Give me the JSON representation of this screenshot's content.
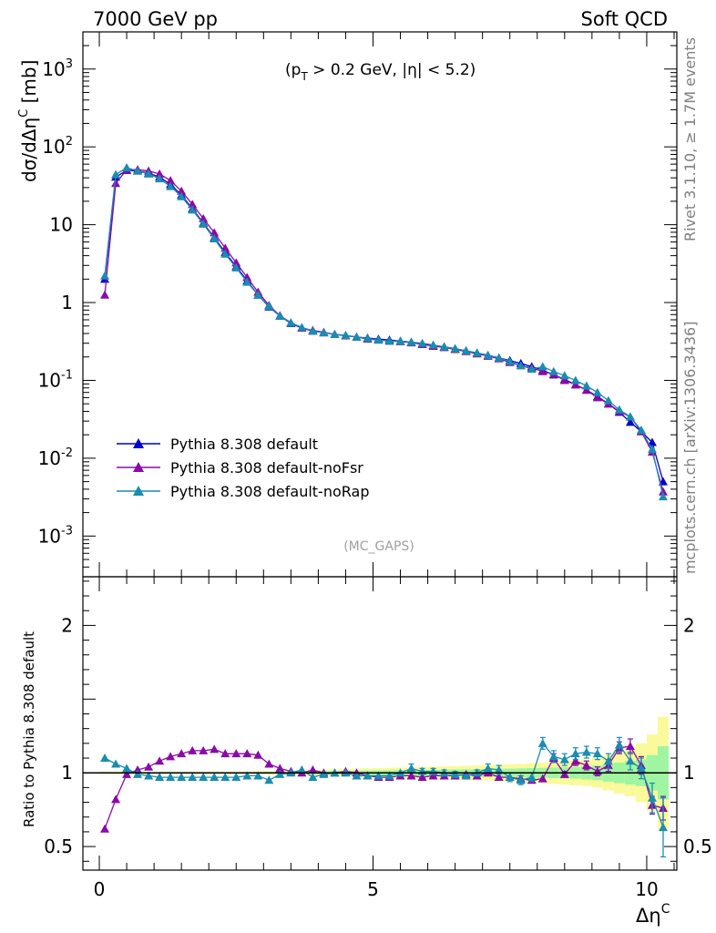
{
  "header": {
    "left": "7000 GeV pp",
    "right": "Soft QCD"
  },
  "side_text": {
    "upper": "Rivet 3.1.10, ≥ 1.7M events",
    "lower": "mcplots.cern.ch [arXiv:1306.3436]"
  },
  "plot": {
    "cut_label": "(p T > 0.2 GeV, |η| < 5.2)",
    "cut_pre": "(p",
    "cut_sub": "T",
    "cut_post": " > 0.2 GeV, |η| < 5.2)",
    "watermark": "(MC_GAPS)",
    "ylabel_top": "dσ/dΔη^C [mb]",
    "ylabel_top_main": "dσ/dΔη",
    "ylabel_top_sup": "C",
    "ylabel_top_unit": " [mb]",
    "ylabel_bottom": "Ratio to Pythia 8.308 default",
    "xlabel_main": "Δη",
    "xlabel_sup": "C"
  },
  "colors": {
    "default": "#0000cc",
    "noFsr": "#8a0aa8",
    "noRap": "#1a8cb0",
    "band_inner": "#a0f5a0",
    "band_outer": "#fafa9a"
  },
  "chart_data": [
    {
      "type": "line",
      "scale": "log",
      "xlim": [
        -0.3,
        10.55
      ],
      "ylim": [
        0.0003,
        3000
      ],
      "ytick_labels": [
        "10^-3",
        "10^-2",
        "10^-1",
        "1",
        "10",
        "10^2",
        "10^3"
      ],
      "xtick_labels": [
        "0",
        "5",
        "10"
      ],
      "x": [
        0.1,
        0.3,
        0.5,
        0.7,
        0.9,
        1.1,
        1.3,
        1.5,
        1.7,
        1.9,
        2.1,
        2.3,
        2.5,
        2.7,
        2.9,
        3.1,
        3.3,
        3.5,
        3.7,
        3.9,
        4.1,
        4.3,
        4.5,
        4.7,
        4.9,
        5.1,
        5.3,
        5.5,
        5.7,
        5.9,
        6.1,
        6.3,
        6.5,
        6.7,
        6.9,
        7.1,
        7.3,
        7.5,
        7.7,
        7.9,
        8.1,
        8.3,
        8.5,
        8.7,
        8.9,
        9.1,
        9.3,
        9.5,
        9.7,
        9.9,
        10.1,
        10.3
      ],
      "series": [
        {
          "name": "Pythia 8.308 default",
          "values": [
            2.0,
            41,
            50,
            49,
            46,
            41,
            33,
            24,
            16,
            10.5,
            6.8,
            4.4,
            2.9,
            1.9,
            1.25,
            0.88,
            0.67,
            0.54,
            0.47,
            0.43,
            0.41,
            0.39,
            0.375,
            0.36,
            0.35,
            0.34,
            0.33,
            0.32,
            0.31,
            0.295,
            0.28,
            0.27,
            0.255,
            0.24,
            0.225,
            0.21,
            0.195,
            0.18,
            0.165,
            0.15,
            0.135,
            0.118,
            0.103,
            0.088,
            0.075,
            0.062,
            0.05,
            0.039,
            0.029,
            0.022,
            0.016,
            0.005
          ]
        },
        {
          "name": "Pythia 8.308 default-noFsr",
          "values": [
            1.25,
            34,
            51,
            51,
            49,
            45,
            37,
            27,
            18.3,
            12.0,
            7.9,
            5.0,
            3.25,
            2.1,
            1.36,
            0.92,
            0.68,
            0.55,
            0.47,
            0.44,
            0.415,
            0.39,
            0.375,
            0.36,
            0.34,
            0.33,
            0.32,
            0.315,
            0.305,
            0.29,
            0.275,
            0.265,
            0.25,
            0.235,
            0.22,
            0.205,
            0.19,
            0.17,
            0.155,
            0.145,
            0.13,
            0.12,
            0.1,
            0.088,
            0.075,
            0.06,
            0.05,
            0.04,
            0.034,
            0.022,
            0.012,
            0.0037
          ]
        },
        {
          "name": "Pythia 8.308 default-noRap",
          "values": [
            2.2,
            44,
            54,
            49,
            45,
            39,
            31,
            23,
            15.5,
            10.2,
            6.6,
            4.2,
            2.8,
            1.83,
            1.25,
            0.9,
            0.67,
            0.55,
            0.48,
            0.43,
            0.41,
            0.39,
            0.38,
            0.36,
            0.345,
            0.33,
            0.32,
            0.32,
            0.31,
            0.3,
            0.285,
            0.27,
            0.255,
            0.24,
            0.225,
            0.21,
            0.195,
            0.175,
            0.155,
            0.14,
            0.15,
            0.13,
            0.115,
            0.1,
            0.085,
            0.07,
            0.055,
            0.042,
            0.034,
            0.023,
            0.013,
            0.0032
          ]
        }
      ]
    },
    {
      "type": "line",
      "ylabel": "Ratio to Pythia 8.308 default",
      "ylim": [
        0.34,
        2.33
      ],
      "ytick_labels": [
        "0.5",
        "1",
        "2"
      ],
      "xtick_labels": [
        "0",
        "5",
        "10"
      ],
      "x": [
        0.1,
        0.3,
        0.5,
        0.7,
        0.9,
        1.1,
        1.3,
        1.5,
        1.7,
        1.9,
        2.1,
        2.3,
        2.5,
        2.7,
        2.9,
        3.1,
        3.3,
        3.5,
        3.7,
        3.9,
        4.1,
        4.3,
        4.5,
        4.7,
        4.9,
        5.1,
        5.3,
        5.5,
        5.7,
        5.9,
        6.1,
        6.3,
        6.5,
        6.7,
        6.9,
        7.1,
        7.3,
        7.5,
        7.7,
        7.9,
        8.1,
        8.3,
        8.5,
        8.7,
        8.9,
        9.1,
        9.3,
        9.5,
        9.7,
        9.9,
        10.1,
        10.3
      ],
      "band": {
        "x": [
          0.0,
          0.2,
          0.4,
          0.6,
          0.8,
          1.0,
          1.2,
          1.4,
          1.6,
          1.8,
          2.0,
          2.2,
          2.4,
          2.6,
          2.8,
          3.0,
          3.2,
          3.4,
          3.6,
          3.8,
          4.0,
          4.2,
          4.4,
          4.6,
          4.8,
          5.0,
          5.2,
          5.4,
          5.6,
          5.8,
          6.0,
          6.2,
          6.4,
          6.6,
          6.8,
          7.0,
          7.2,
          7.4,
          7.6,
          7.8,
          8.0,
          8.2,
          8.4,
          8.6,
          8.8,
          9.0,
          9.2,
          9.4,
          9.6,
          9.8,
          10.0,
          10.2,
          10.4
        ],
        "inner": [
          0.005,
          0.005,
          0.005,
          0.005,
          0.005,
          0.005,
          0.005,
          0.005,
          0.005,
          0.005,
          0.005,
          0.005,
          0.005,
          0.005,
          0.006,
          0.006,
          0.007,
          0.008,
          0.009,
          0.01,
          0.011,
          0.012,
          0.013,
          0.014,
          0.015,
          0.016,
          0.017,
          0.018,
          0.019,
          0.02,
          0.021,
          0.022,
          0.023,
          0.024,
          0.025,
          0.026,
          0.027,
          0.028,
          0.03,
          0.032,
          0.034,
          0.036,
          0.038,
          0.04,
          0.045,
          0.05,
          0.06,
          0.07,
          0.08,
          0.09,
          0.12,
          0.18
        ],
        "outer": [
          0.008,
          0.008,
          0.008,
          0.008,
          0.008,
          0.008,
          0.008,
          0.008,
          0.008,
          0.008,
          0.008,
          0.008,
          0.008,
          0.009,
          0.01,
          0.012,
          0.014,
          0.016,
          0.018,
          0.02,
          0.022,
          0.024,
          0.026,
          0.028,
          0.03,
          0.032,
          0.034,
          0.036,
          0.038,
          0.04,
          0.042,
          0.044,
          0.046,
          0.048,
          0.05,
          0.052,
          0.055,
          0.058,
          0.06,
          0.065,
          0.07,
          0.075,
          0.08,
          0.085,
          0.09,
          0.1,
          0.12,
          0.14,
          0.16,
          0.2,
          0.26,
          0.38
        ]
      },
      "series": [
        {
          "name": "Pythia 8.308 default-noFsr",
          "values": [
            0.62,
            0.82,
            0.99,
            1.02,
            1.04,
            1.08,
            1.11,
            1.13,
            1.15,
            1.15,
            1.16,
            1.13,
            1.13,
            1.13,
            1.12,
            1.06,
            1.03,
            1.01,
            1.0,
            1.02,
            1.0,
            1.0,
            1.01,
            1.0,
            0.98,
            0.97,
            0.97,
            0.98,
            0.98,
            0.97,
            0.98,
            0.98,
            0.98,
            0.99,
            0.98,
            1.0,
            0.97,
            0.97,
            0.96,
            0.95,
            0.96,
            1.1,
            0.99,
            1.08,
            1.05,
            1.01,
            1.05,
            1.17,
            1.18,
            1.05,
            0.78,
            0.76
          ],
          "errors": [
            0.005,
            0.005,
            0.005,
            0.005,
            0.005,
            0.005,
            0.005,
            0.005,
            0.005,
            0.005,
            0.005,
            0.005,
            0.005,
            0.005,
            0.005,
            0.005,
            0.005,
            0.005,
            0.005,
            0.005,
            0.005,
            0.005,
            0.005,
            0.005,
            0.005,
            0.005,
            0.005,
            0.005,
            0.005,
            0.005,
            0.005,
            0.005,
            0.005,
            0.005,
            0.005,
            0.005,
            0.005,
            0.005,
            0.005,
            0.005,
            0.005,
            0.03,
            0.02,
            0.03,
            0.03,
            0.03,
            0.04,
            0.04,
            0.05,
            0.06,
            0.06,
            0.08
          ]
        },
        {
          "name": "Pythia 8.308 default-noRap",
          "values": [
            1.1,
            1.06,
            1.03,
            0.99,
            0.98,
            0.97,
            0.97,
            0.97,
            0.97,
            0.97,
            0.97,
            0.97,
            0.97,
            0.98,
            0.98,
            0.95,
            0.99,
            1.0,
            1.02,
            0.97,
            0.99,
            1.0,
            1.0,
            0.98,
            0.98,
            0.98,
            0.98,
            1.0,
            1.03,
            1.01,
            1.01,
            1.0,
            0.99,
            0.98,
            1.0,
            1.03,
            1.02,
            0.97,
            0.95,
            0.97,
            1.2,
            1.11,
            1.09,
            1.13,
            1.14,
            1.13,
            1.08,
            1.19,
            1.08,
            1.03,
            0.83,
            0.63
          ],
          "errors": [
            0.005,
            0.005,
            0.005,
            0.005,
            0.005,
            0.005,
            0.005,
            0.005,
            0.005,
            0.005,
            0.005,
            0.005,
            0.005,
            0.005,
            0.005,
            0.005,
            0.005,
            0.005,
            0.005,
            0.005,
            0.005,
            0.005,
            0.005,
            0.005,
            0.005,
            0.005,
            0.005,
            0.005,
            0.03,
            0.02,
            0.02,
            0.02,
            0.02,
            0.02,
            0.02,
            0.03,
            0.03,
            0.03,
            0.03,
            0.03,
            0.04,
            0.04,
            0.04,
            0.04,
            0.04,
            0.04,
            0.05,
            0.05,
            0.06,
            0.07,
            0.1,
            0.2
          ]
        },
        {
          "name": "Pythia 8.308 default",
          "values": [
            1.0,
            1.0,
            1.0,
            1.0,
            1.0,
            1.0,
            1.0,
            1.0,
            1.0,
            1.0,
            1.0,
            1.0,
            1.0,
            1.0,
            1.0,
            1.0,
            1.0,
            1.0,
            1.0,
            1.0,
            1.0,
            1.0,
            1.0,
            1.0,
            1.0,
            1.0,
            1.0,
            1.0,
            1.0,
            1.0,
            1.0,
            1.0,
            1.0,
            1.0,
            1.0,
            1.0,
            1.0,
            1.0,
            1.0,
            1.0,
            1.0,
            1.0,
            1.0,
            1.0,
            1.0,
            1.0,
            1.0,
            1.0,
            1.0,
            1.0,
            1.0,
            1.0
          ]
        }
      ]
    }
  ]
}
